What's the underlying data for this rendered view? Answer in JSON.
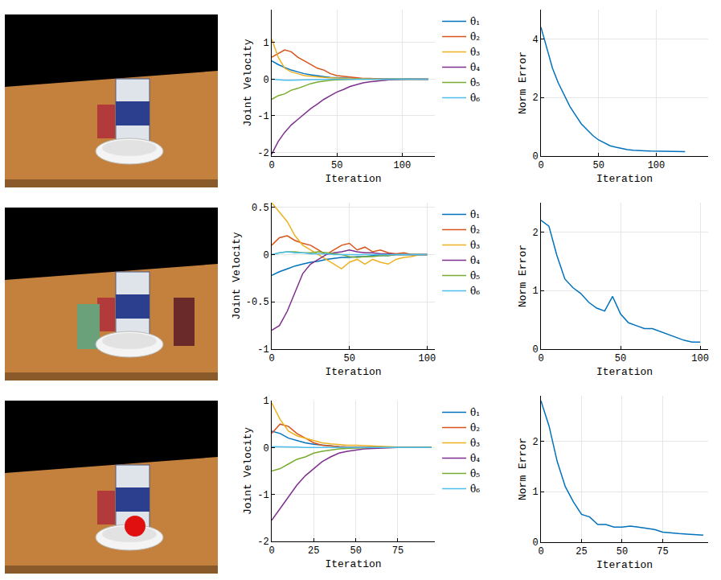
{
  "chart_data": [
    {
      "type": "line",
      "x_label": "Iteration",
      "y_label": "Joint Velocity",
      "x": [
        0,
        5,
        10,
        15,
        20,
        25,
        30,
        35,
        40,
        45,
        50,
        55,
        60,
        65,
        70,
        75,
        80,
        85,
        90,
        95,
        100,
        105,
        110,
        115,
        120
      ],
      "xlim": [
        0,
        125
      ],
      "xticks": [
        0,
        50,
        100
      ],
      "ylim": [
        -2.1,
        1.9
      ],
      "yticks": [
        -2,
        -1,
        0,
        1
      ],
      "grid": true,
      "legend": "right",
      "series": [
        {
          "name": "θ̇₁",
          "color": "#0072BD",
          "values": [
            0.5,
            0.4,
            0.32,
            0.25,
            0.2,
            0.15,
            0.12,
            0.09,
            0.07,
            0.05,
            0.04,
            0.03,
            0.02,
            0.02,
            0.01,
            0.01,
            0.01,
            0,
            0,
            0,
            0,
            0,
            0,
            0,
            0
          ]
        },
        {
          "name": "θ̇₂",
          "color": "#D95319",
          "values": [
            0.6,
            0.7,
            0.8,
            0.75,
            0.6,
            0.5,
            0.4,
            0.3,
            0.25,
            0.15,
            0.1,
            0.08,
            0.05,
            0.03,
            0.02,
            0.02,
            0.01,
            0.01,
            0,
            0,
            0,
            0,
            0,
            0,
            0
          ]
        },
        {
          "name": "θ̇₃",
          "color": "#EDB120",
          "values": [
            1.1,
            0.6,
            0.3,
            0.2,
            0.15,
            0.1,
            0.08,
            0.06,
            0.05,
            0.04,
            0.03,
            0.02,
            0.02,
            0.01,
            0.01,
            0,
            0,
            0,
            0,
            0,
            0,
            0,
            0,
            0,
            0
          ]
        },
        {
          "name": "θ̇₄",
          "color": "#7E2F8E",
          "values": [
            -2.05,
            -1.7,
            -1.45,
            -1.25,
            -1.1,
            -0.95,
            -0.8,
            -0.68,
            -0.55,
            -0.45,
            -0.35,
            -0.28,
            -0.2,
            -0.15,
            -0.1,
            -0.07,
            -0.05,
            -0.03,
            -0.02,
            -0.01,
            0,
            0,
            0,
            0,
            0
          ]
        },
        {
          "name": "θ̇₅",
          "color": "#77AC30",
          "values": [
            -0.55,
            -0.45,
            -0.4,
            -0.3,
            -0.25,
            -0.18,
            -0.12,
            -0.08,
            -0.05,
            -0.03,
            -0.02,
            -0.01,
            0,
            0,
            0,
            0,
            0,
            0,
            0,
            0,
            0,
            0,
            0,
            0,
            0
          ]
        },
        {
          "name": "θ̇₆",
          "color": "#4DBEEE",
          "values": [
            0,
            -0.02,
            -0.03,
            -0.03,
            -0.02,
            -0.02,
            -0.01,
            -0.01,
            0,
            0,
            0,
            0,
            0,
            0,
            0,
            0,
            0,
            0,
            0,
            0,
            0,
            0,
            0,
            0,
            0
          ]
        }
      ]
    },
    {
      "type": "line",
      "x_label": "Iteration",
      "y_label": "Norm Error",
      "x": [
        0,
        5,
        10,
        15,
        20,
        25,
        30,
        35,
        40,
        45,
        50,
        55,
        60,
        65,
        70,
        75,
        80,
        85,
        90,
        95,
        100,
        105,
        110,
        115,
        120,
        125
      ],
      "xlim": [
        0,
        145
      ],
      "xticks": [
        0,
        50,
        100
      ],
      "ylim": [
        0,
        5
      ],
      "yticks": [
        0,
        2,
        4
      ],
      "grid": true,
      "series": [
        {
          "color": "#0072BD",
          "values": [
            4.4,
            3.7,
            3.0,
            2.5,
            2.1,
            1.7,
            1.4,
            1.1,
            0.9,
            0.7,
            0.55,
            0.45,
            0.35,
            0.3,
            0.25,
            0.22,
            0.2,
            0.2,
            0.18,
            0.17,
            0.17,
            0.16,
            0.16,
            0.15,
            0.16,
            0.15
          ]
        }
      ]
    },
    {
      "type": "line",
      "x_label": "Iteration",
      "y_label": "Joint Velocity",
      "x": [
        0,
        5,
        10,
        15,
        20,
        25,
        30,
        35,
        40,
        45,
        50,
        55,
        60,
        65,
        70,
        75,
        80,
        85,
        90,
        95,
        100
      ],
      "xlim": [
        0,
        105
      ],
      "xticks": [
        0,
        50,
        100
      ],
      "ylim": [
        -1,
        0.55
      ],
      "yticks": [
        -1,
        -0.5,
        0,
        0.5
      ],
      "grid": true,
      "legend": "right",
      "series": [
        {
          "name": "θ̇₁",
          "color": "#0072BD",
          "values": [
            -0.22,
            -0.18,
            -0.15,
            -0.12,
            -0.1,
            -0.08,
            -0.07,
            -0.05,
            -0.04,
            -0.03,
            -0.03,
            -0.02,
            -0.02,
            -0.01,
            -0.01,
            -0.01,
            0,
            0,
            0,
            0,
            0
          ]
        },
        {
          "name": "θ̇₂",
          "color": "#D95319",
          "values": [
            0.1,
            0.18,
            0.2,
            0.15,
            0.12,
            0.1,
            0.05,
            0,
            0.05,
            0.1,
            0.12,
            0.05,
            0.08,
            0.03,
            0.05,
            0.02,
            0.01,
            0.02,
            0,
            0,
            0
          ]
        },
        {
          "name": "θ̇₃",
          "color": "#EDB120",
          "values": [
            0.55,
            0.45,
            0.35,
            0.2,
            0.1,
            0.05,
            0,
            -0.05,
            -0.1,
            -0.15,
            -0.08,
            -0.05,
            -0.1,
            -0.05,
            -0.08,
            -0.1,
            -0.05,
            -0.03,
            -0.02,
            0,
            0
          ]
        },
        {
          "name": "θ̇₄",
          "color": "#7E2F8E",
          "values": [
            -0.8,
            -0.75,
            -0.6,
            -0.4,
            -0.2,
            -0.1,
            -0.05,
            0,
            0.02,
            0.03,
            0.05,
            0.03,
            0.02,
            0.02,
            0.01,
            0.01,
            0,
            0,
            0,
            0,
            0
          ]
        },
        {
          "name": "θ̇₅",
          "color": "#77AC30",
          "values": [
            0,
            0.02,
            0.03,
            0.03,
            0.02,
            0.02,
            0.03,
            0.02,
            0.01,
            0,
            -0.02,
            -0.03,
            -0.02,
            -0.02,
            -0.01,
            -0.01,
            0,
            0,
            0,
            0,
            0
          ]
        },
        {
          "name": "θ̇₆",
          "color": "#4DBEEE",
          "values": [
            0,
            0.02,
            0.03,
            0.02,
            0.02,
            0.01,
            0.01,
            0.01,
            0,
            0,
            0,
            0,
            0,
            0,
            0,
            0,
            0,
            0,
            0,
            0,
            0
          ]
        }
      ]
    },
    {
      "type": "line",
      "x_label": "Iteration",
      "y_label": "Norm Error",
      "x": [
        0,
        5,
        10,
        15,
        20,
        25,
        30,
        35,
        40,
        45,
        50,
        55,
        60,
        65,
        70,
        75,
        80,
        85,
        90,
        95,
        100
      ],
      "xlim": [
        0,
        105
      ],
      "xticks": [
        0,
        50,
        100
      ],
      "ylim": [
        0,
        2.5
      ],
      "yticks": [
        0,
        1,
        2
      ],
      "grid": true,
      "series": [
        {
          "color": "#0072BD",
          "values": [
            2.2,
            2.1,
            1.6,
            1.2,
            1.05,
            0.95,
            0.8,
            0.7,
            0.65,
            0.9,
            0.6,
            0.45,
            0.4,
            0.35,
            0.35,
            0.3,
            0.25,
            0.2,
            0.15,
            0.12,
            0.12
          ]
        }
      ]
    },
    {
      "type": "line",
      "x_label": "Iteration",
      "y_label": "Joint Velocity",
      "x": [
        0,
        5,
        10,
        15,
        20,
        25,
        30,
        35,
        40,
        45,
        50,
        55,
        60,
        65,
        70,
        75,
        80,
        85,
        90,
        95
      ],
      "xlim": [
        0,
        97
      ],
      "xticks": [
        0,
        25,
        50,
        75
      ],
      "ylim": [
        -2,
        1
      ],
      "yticks": [
        -2,
        -1,
        0,
        1
      ],
      "grid": true,
      "legend": "right",
      "series": [
        {
          "name": "θ̇₁",
          "color": "#0072BD",
          "values": [
            0.35,
            0.3,
            0.2,
            0.15,
            0.1,
            0.07,
            0.05,
            0.03,
            0.02,
            0.01,
            0,
            0,
            0,
            0,
            0,
            0,
            0,
            0,
            0,
            0
          ]
        },
        {
          "name": "θ̇₂",
          "color": "#D95319",
          "values": [
            0.3,
            0.5,
            0.45,
            0.3,
            0.2,
            0.1,
            0.05,
            0.03,
            0.02,
            0.01,
            0,
            0,
            0,
            0,
            0,
            0,
            0,
            0,
            0,
            0
          ]
        },
        {
          "name": "θ̇₃",
          "color": "#EDB120",
          "values": [
            0.95,
            0.6,
            0.35,
            0.25,
            0.2,
            0.15,
            0.1,
            0.08,
            0.06,
            0.05,
            0.05,
            0.04,
            0.03,
            0.02,
            0.02,
            0.01,
            0.01,
            0,
            0,
            0
          ]
        },
        {
          "name": "θ̇₄",
          "color": "#7E2F8E",
          "values": [
            -1.55,
            -1.3,
            -1.05,
            -0.8,
            -0.6,
            -0.45,
            -0.3,
            -0.2,
            -0.12,
            -0.08,
            -0.05,
            -0.03,
            -0.02,
            -0.01,
            0,
            0,
            0,
            0,
            0,
            0
          ]
        },
        {
          "name": "θ̇₅",
          "color": "#77AC30",
          "values": [
            -0.5,
            -0.45,
            -0.35,
            -0.25,
            -0.2,
            -0.12,
            -0.08,
            -0.05,
            -0.03,
            -0.02,
            -0.01,
            0,
            0,
            0,
            0,
            0,
            0,
            0,
            0,
            0
          ]
        },
        {
          "name": "θ̇₆",
          "color": "#4DBEEE",
          "values": [
            0.02,
            0.02,
            0.01,
            0.01,
            0,
            0,
            0,
            0,
            0,
            0,
            0,
            0,
            0,
            0,
            0,
            0,
            0,
            0,
            0,
            0
          ]
        }
      ]
    },
    {
      "type": "line",
      "x_label": "Iteration",
      "y_label": "Norm Error",
      "x": [
        0,
        5,
        10,
        15,
        20,
        25,
        30,
        35,
        40,
        45,
        50,
        55,
        60,
        65,
        70,
        75,
        80,
        85,
        90,
        95,
        100
      ],
      "xlim": [
        0,
        103
      ],
      "xticks": [
        0,
        25,
        50,
        75
      ],
      "ylim": [
        0,
        2.9
      ],
      "yticks": [
        0,
        1,
        2
      ],
      "grid": true,
      "series": [
        {
          "color": "#0072BD",
          "values": [
            2.8,
            2.3,
            1.6,
            1.1,
            0.8,
            0.55,
            0.5,
            0.35,
            0.35,
            0.3,
            0.3,
            0.32,
            0.3,
            0.28,
            0.25,
            0.2,
            0.18,
            0.17,
            0.16,
            0.15,
            0.14
          ]
        }
      ]
    }
  ]
}
